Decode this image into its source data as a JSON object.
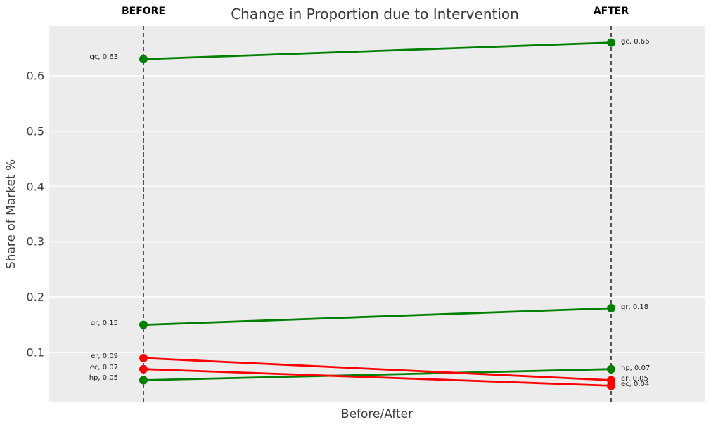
{
  "title": "Change in Proportion due to Intervention",
  "column_headers": {
    "before": "BEFORE",
    "after": "AFTER"
  },
  "axis": {
    "xlabel": "Before/After",
    "ylabel": "Share of Market %"
  },
  "chart_data": {
    "type": "line",
    "subtype": "slope-chart",
    "title": "Change in Proportion due to Intervention",
    "xlabel": "Before/After",
    "ylabel": "Share of Market %",
    "categories": [
      "BEFORE",
      "AFTER"
    ],
    "yticks": [
      0.1,
      0.2,
      0.3,
      0.4,
      0.5,
      0.6
    ],
    "ylim": [
      0.01,
      0.69
    ],
    "grid": "horizontal-major",
    "legend": "none",
    "series": [
      {
        "name": "gc",
        "values": [
          0.63,
          0.66
        ],
        "trend": "increase",
        "color": "#008000",
        "labels": [
          "gc, 0.63",
          "gc, 0.66"
        ]
      },
      {
        "name": "gr",
        "values": [
          0.15,
          0.18
        ],
        "trend": "increase",
        "color": "#008000",
        "labels": [
          "gr, 0.15",
          "gr, 0.18"
        ]
      },
      {
        "name": "hp",
        "values": [
          0.05,
          0.07
        ],
        "trend": "increase",
        "color": "#008000",
        "labels": [
          "hp, 0.05",
          "hp, 0.07"
        ]
      },
      {
        "name": "er",
        "values": [
          0.09,
          0.05
        ],
        "trend": "decrease",
        "color": "#ff0000",
        "labels": [
          "er, 0.09",
          "er, 0.05"
        ]
      },
      {
        "name": "ec",
        "values": [
          0.07,
          0.04
        ],
        "trend": "decrease",
        "color": "#ff0000",
        "labels": [
          "ec, 0.07",
          "ec, 0.04"
        ]
      }
    ],
    "colors": {
      "increase": "#008000",
      "decrease": "#ff0000",
      "plot_background": "#ececec",
      "gridline": "#ffffff",
      "guide_line": "#000000"
    }
  }
}
